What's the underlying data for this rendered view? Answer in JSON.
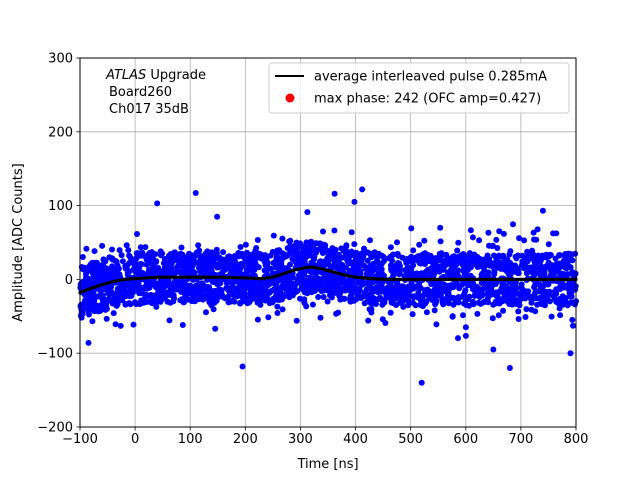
{
  "chart_data": {
    "type": "scatter",
    "xlabel": "Time [ns]",
    "ylabel": "Amplitude [ADC Counts]",
    "xlim": [
      -100,
      800
    ],
    "ylim": [
      -200,
      300
    ],
    "xticks": [
      -100,
      0,
      100,
      200,
      300,
      400,
      500,
      600,
      700,
      800
    ],
    "yticks": [
      -200,
      -100,
      0,
      100,
      200,
      300
    ],
    "xtick_labels": [
      "−100",
      "0",
      "100",
      "200",
      "300",
      "400",
      "500",
      "600",
      "700",
      "800"
    ],
    "ytick_labels": [
      "−200",
      "−100",
      "0",
      "100",
      "200",
      "300"
    ],
    "grid": true,
    "annotation": {
      "line1_italic": "ATLAS",
      "line1_rest": " Upgrade",
      "line2": "Board260",
      "line3": "Ch017 35dB"
    },
    "legend": {
      "placement": "top-right",
      "entries": [
        {
          "label": "average interleaved pulse 0.285mA",
          "marker": "line",
          "color": "#000000"
        },
        {
          "label": "max phase: 242 (OFC amp=0.427)",
          "marker": "dot",
          "color": "#ff0000"
        }
      ]
    },
    "series": [
      {
        "kind": "scatter",
        "color": "#0000ff",
        "note": "dense noise band around the average pulse",
        "band_center_follows_average": true,
        "core_halfwidth": 35,
        "notable_outliers": [
          {
            "x": 110,
            "y": 117
          },
          {
            "x": 412,
            "y": 122
          },
          {
            "x": 362,
            "y": 116
          },
          {
            "x": 398,
            "y": 105
          },
          {
            "x": 40,
            "y": 103
          },
          {
            "x": 195,
            "y": -118
          },
          {
            "x": 520,
            "y": -140
          },
          {
            "x": 680,
            "y": -120
          },
          {
            "x": 790,
            "y": -100
          },
          {
            "x": 650,
            "y": -95
          },
          {
            "x": 740,
            "y": 93
          }
        ]
      },
      {
        "kind": "line",
        "name": "average interleaved pulse 0.285mA",
        "color": "#000000",
        "x": [
          -100,
          -80,
          -60,
          -40,
          -20,
          0,
          20,
          40,
          60,
          80,
          100,
          150,
          200,
          230,
          250,
          270,
          290,
          310,
          320,
          340,
          360,
          380,
          400,
          430,
          460,
          500,
          550,
          600,
          650,
          700,
          750,
          800
        ],
        "y": [
          -18,
          -12,
          -7,
          -3,
          0,
          1,
          2,
          3,
          3,
          3,
          3,
          3,
          2,
          1,
          3,
          8,
          13,
          16,
          17,
          14,
          10,
          6,
          3,
          1,
          0,
          0,
          0,
          0,
          0,
          0,
          0,
          0
        ]
      }
    ]
  }
}
